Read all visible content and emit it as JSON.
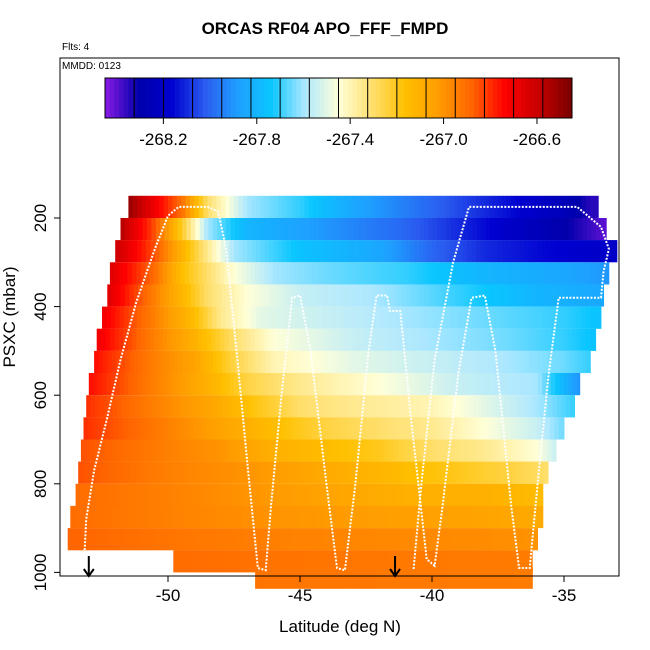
{
  "chart_data": {
    "type": "heatmap",
    "title": "ORCAS RF04 APO_FFF_FMPD",
    "flts_label": "Flts: 4",
    "mmdd_label": "MMDD: 0123",
    "xlabel": "Latitude (deg N)",
    "ylabel": "PSXC (mbar)",
    "xlim": [
      -54.5,
      -33.2
    ],
    "ylim": [
      1015,
      100
    ],
    "x_ticks": [
      -50,
      -45,
      -40,
      -35
    ],
    "y_ticks": [
      200,
      400,
      600,
      800,
      1000
    ],
    "colorbar": {
      "range": [
        -268.45,
        -266.45
      ],
      "ticks": [
        -268.2,
        -267.8,
        -267.4,
        -267.0,
        -266.6
      ],
      "colors": [
        "#8a1ae6",
        "#0000aa",
        "#0000d0",
        "#2a5cf0",
        "#1ea0ff",
        "#0ac6ff",
        "#aee8ff",
        "#ffffd8",
        "#ffe070",
        "#ffc000",
        "#ff9c00",
        "#ff6400",
        "#ff0000",
        "#c80000",
        "#780000"
      ]
    },
    "rows": [
      {
        "p": 175,
        "lat_min": -51.5,
        "lat_max": -33.7,
        "knots": [
          [
            -51.5,
            -266.5
          ],
          [
            -50.5,
            -266.7
          ],
          [
            -49.5,
            -266.9
          ],
          [
            -48.5,
            -267.3
          ],
          [
            -47,
            -267.6
          ],
          [
            -45,
            -267.7
          ],
          [
            -43,
            -267.85
          ],
          [
            -41,
            -267.95
          ],
          [
            -39,
            -268.05
          ],
          [
            -37,
            -268.15
          ],
          [
            -35,
            -268.25
          ],
          [
            -34,
            -268.35
          ]
        ]
      },
      {
        "p": 225,
        "lat_min": -51.8,
        "lat_max": -33.4,
        "knots": [
          [
            -51.8,
            -266.55
          ],
          [
            -50.5,
            -266.85
          ],
          [
            -49.5,
            -267.2
          ],
          [
            -48.5,
            -267.6
          ],
          [
            -47,
            -267.8
          ],
          [
            -44,
            -267.9
          ],
          [
            -41,
            -268.0
          ],
          [
            -39,
            -268.1
          ],
          [
            -37,
            -268.2
          ],
          [
            -35,
            -268.3
          ],
          [
            -33.5,
            -268.4
          ]
        ]
      },
      {
        "p": 275,
        "lat_min": -52.0,
        "lat_max": -33.0,
        "knots": [
          [
            -52,
            -266.6
          ],
          [
            -50.5,
            -266.85
          ],
          [
            -49.5,
            -267.1
          ],
          [
            -48.5,
            -267.35
          ],
          [
            -47.5,
            -267.6
          ],
          [
            -45,
            -267.75
          ],
          [
            -42,
            -267.85
          ],
          [
            -40,
            -268.0
          ],
          [
            -38,
            -268.1
          ],
          [
            -36,
            -268.15
          ],
          [
            -33.2,
            -268.2
          ]
        ]
      },
      {
        "p": 325,
        "lat_min": -52.2,
        "lat_max": -33.3,
        "knots": [
          [
            -52.2,
            -266.65
          ],
          [
            -50.5,
            -266.9
          ],
          [
            -49.5,
            -267.15
          ],
          [
            -48.5,
            -267.3
          ],
          [
            -47.5,
            -267.45
          ],
          [
            -46,
            -267.6
          ],
          [
            -44,
            -267.65
          ],
          [
            -41,
            -267.7
          ],
          [
            -38,
            -267.8
          ],
          [
            -35,
            -267.85
          ],
          [
            -33.3,
            -267.9
          ]
        ]
      },
      {
        "p": 375,
        "lat_min": -52.3,
        "lat_max": -33.5,
        "knots": [
          [
            -52.3,
            -266.65
          ],
          [
            -50.5,
            -266.95
          ],
          [
            -49.3,
            -267.15
          ],
          [
            -48.5,
            -267.3
          ],
          [
            -47,
            -267.45
          ],
          [
            -45,
            -267.55
          ],
          [
            -42,
            -267.6
          ],
          [
            -39,
            -267.7
          ],
          [
            -36,
            -267.8
          ],
          [
            -33.5,
            -267.85
          ]
        ]
      },
      {
        "p": 425,
        "lat_min": -52.5,
        "lat_max": -33.6,
        "knots": [
          [
            -52.5,
            -266.7
          ],
          [
            -50.5,
            -266.95
          ],
          [
            -49,
            -267.15
          ],
          [
            -48,
            -267.35
          ],
          [
            -46.5,
            -267.5
          ],
          [
            -44,
            -267.55
          ],
          [
            -41,
            -267.6
          ],
          [
            -38,
            -267.65
          ],
          [
            -35,
            -267.7
          ],
          [
            -33.6,
            -267.75
          ]
        ]
      },
      {
        "p": 475,
        "lat_min": -52.7,
        "lat_max": -33.8,
        "knots": [
          [
            -52.7,
            -266.7
          ],
          [
            -50.5,
            -266.95
          ],
          [
            -49,
            -267.1
          ],
          [
            -47.5,
            -267.3
          ],
          [
            -46,
            -267.45
          ],
          [
            -43,
            -267.55
          ],
          [
            -40,
            -267.6
          ],
          [
            -37,
            -267.65
          ],
          [
            -35,
            -267.7
          ],
          [
            -33.8,
            -267.75
          ]
        ]
      },
      {
        "p": 525,
        "lat_min": -52.8,
        "lat_max": -34.0,
        "knots": [
          [
            -52.8,
            -266.75
          ],
          [
            -50.5,
            -266.95
          ],
          [
            -49,
            -267.05
          ],
          [
            -47.5,
            -267.25
          ],
          [
            -46,
            -267.4
          ],
          [
            -43,
            -267.5
          ],
          [
            -40,
            -267.55
          ],
          [
            -37,
            -267.6
          ],
          [
            -35,
            -267.65
          ],
          [
            -34,
            -267.7
          ]
        ]
      },
      {
        "p": 575,
        "lat_min": -53.0,
        "lat_max": -34.4,
        "knots": [
          [
            -53,
            -266.75
          ],
          [
            -50.5,
            -266.95
          ],
          [
            -48.5,
            -267.1
          ],
          [
            -47,
            -267.25
          ],
          [
            -45,
            -267.35
          ],
          [
            -42,
            -267.45
          ],
          [
            -39,
            -267.55
          ],
          [
            -36,
            -267.6
          ],
          [
            -34.5,
            -267.9
          ]
        ]
      },
      {
        "p": 625,
        "lat_min": -53.1,
        "lat_max": -34.6,
        "knots": [
          [
            -53.1,
            -266.8
          ],
          [
            -50.5,
            -266.95
          ],
          [
            -48.5,
            -267.05
          ],
          [
            -46.5,
            -267.2
          ],
          [
            -45,
            -267.3
          ],
          [
            -43,
            -267.35
          ],
          [
            -40,
            -267.4
          ],
          [
            -38,
            -267.5
          ],
          [
            -36,
            -267.6
          ],
          [
            -34.6,
            -267.7
          ]
        ]
      },
      {
        "p": 675,
        "lat_min": -53.2,
        "lat_max": -35.0,
        "knots": [
          [
            -53.2,
            -266.8
          ],
          [
            -50,
            -266.95
          ],
          [
            -48,
            -267.05
          ],
          [
            -46,
            -267.15
          ],
          [
            -44,
            -267.25
          ],
          [
            -42,
            -267.3
          ],
          [
            -40,
            -267.35
          ],
          [
            -38,
            -267.45
          ],
          [
            -36,
            -267.55
          ],
          [
            -35,
            -267.65
          ]
        ]
      },
      {
        "p": 725,
        "lat_min": -53.3,
        "lat_max": -35.3,
        "knots": [
          [
            -53.3,
            -266.85
          ],
          [
            -50,
            -266.95
          ],
          [
            -48,
            -267.0
          ],
          [
            -46,
            -267.1
          ],
          [
            -44,
            -267.15
          ],
          [
            -42,
            -267.2
          ],
          [
            -40,
            -267.3
          ],
          [
            -38,
            -267.35
          ],
          [
            -36,
            -267.45
          ],
          [
            -35.3,
            -267.55
          ]
        ]
      },
      {
        "p": 775,
        "lat_min": -53.4,
        "lat_max": -35.6,
        "knots": [
          [
            -53.4,
            -266.85
          ],
          [
            -50,
            -266.95
          ],
          [
            -47,
            -267.0
          ],
          [
            -45,
            -267.05
          ],
          [
            -43,
            -267.1
          ],
          [
            -41,
            -267.15
          ],
          [
            -39,
            -267.2
          ],
          [
            -37,
            -267.25
          ],
          [
            -35.6,
            -267.3
          ]
        ]
      },
      {
        "p": 825,
        "lat_min": -53.5,
        "lat_max": -35.8,
        "knots": [
          [
            -53.5,
            -266.9
          ],
          [
            -50,
            -266.95
          ],
          [
            -47,
            -267.0
          ],
          [
            -44,
            -267.05
          ],
          [
            -41,
            -267.1
          ],
          [
            -38,
            -267.1
          ],
          [
            -35.8,
            -267.15
          ]
        ]
      },
      {
        "p": 875,
        "lat_min": -53.7,
        "lat_max": -35.8,
        "knots": [
          [
            -53.7,
            -266.9
          ],
          [
            -50,
            -266.95
          ],
          [
            -46,
            -267.0
          ],
          [
            -42,
            -267.03
          ],
          [
            -38,
            -267.05
          ],
          [
            -35.8,
            -267.08
          ]
        ]
      },
      {
        "p": 925,
        "lat_min": -53.8,
        "lat_max": -36.0,
        "knots": [
          [
            -53.8,
            -266.88
          ],
          [
            -50,
            -266.92
          ],
          [
            -46,
            -266.95
          ],
          [
            -42,
            -266.97
          ],
          [
            -38,
            -266.98
          ],
          [
            -36,
            -267.0
          ]
        ]
      },
      {
        "p": 975,
        "lat_min": -49.8,
        "lat_max": -36.2,
        "knots": [
          [
            -49.8,
            -266.9
          ],
          [
            -45,
            -266.92
          ],
          [
            -41,
            -266.93
          ],
          [
            -36.2,
            -266.94
          ]
        ]
      },
      {
        "p": 1012,
        "lat_min": -46.7,
        "lat_max": -36.2,
        "knots": [
          [
            -46.7,
            -266.92
          ],
          [
            -41,
            -266.93
          ],
          [
            -36.2,
            -266.94
          ]
        ]
      }
    ],
    "flight_track": [
      [
        -53.2,
        1005
      ],
      [
        -53.1,
        880
      ],
      [
        -52.8,
        770
      ],
      [
        -52.3,
        650
      ],
      [
        -51.8,
        520
      ],
      [
        -51.2,
        390
      ],
      [
        -50.5,
        270
      ],
      [
        -50.0,
        195
      ],
      [
        -49.6,
        175
      ],
      [
        -48.5,
        175
      ],
      [
        -48.1,
        185
      ],
      [
        -47.8,
        270
      ],
      [
        -47.4,
        500
      ],
      [
        -47.0,
        750
      ],
      [
        -46.6,
        990
      ],
      [
        -46.3,
        995
      ],
      [
        -46.1,
        850
      ],
      [
        -45.7,
        600
      ],
      [
        -45.3,
        380
      ],
      [
        -45.0,
        375
      ],
      [
        -44.6,
        500
      ],
      [
        -44.0,
        800
      ],
      [
        -43.6,
        990
      ],
      [
        -43.3,
        995
      ],
      [
        -42.9,
        800
      ],
      [
        -42.4,
        500
      ],
      [
        -42.1,
        375
      ],
      [
        -41.7,
        375
      ],
      [
        -41.6,
        410
      ],
      [
        -41.2,
        410
      ],
      [
        -40.8,
        650
      ],
      [
        -40.2,
        970
      ],
      [
        -39.9,
        985
      ],
      [
        -39.6,
        850
      ],
      [
        -39.0,
        550
      ],
      [
        -38.5,
        380
      ],
      [
        -38.0,
        375
      ],
      [
        -37.6,
        500
      ],
      [
        -37.0,
        850
      ],
      [
        -36.7,
        990
      ],
      [
        -36.3,
        990
      ],
      [
        -36.0,
        800
      ],
      [
        -35.6,
        560
      ],
      [
        -35.2,
        380
      ],
      [
        -33.6,
        380
      ],
      [
        -33.5,
        320
      ],
      [
        -33.3,
        270
      ],
      [
        -33.6,
        220
      ],
      [
        -34.5,
        175
      ],
      [
        -37.5,
        175
      ],
      [
        -38.6,
        175
      ],
      [
        -39.2,
        300
      ],
      [
        -39.9,
        520
      ],
      [
        -40.4,
        800
      ],
      [
        -40.7,
        995
      ]
    ],
    "arrows": [
      -53.0,
      -41.4
    ]
  }
}
